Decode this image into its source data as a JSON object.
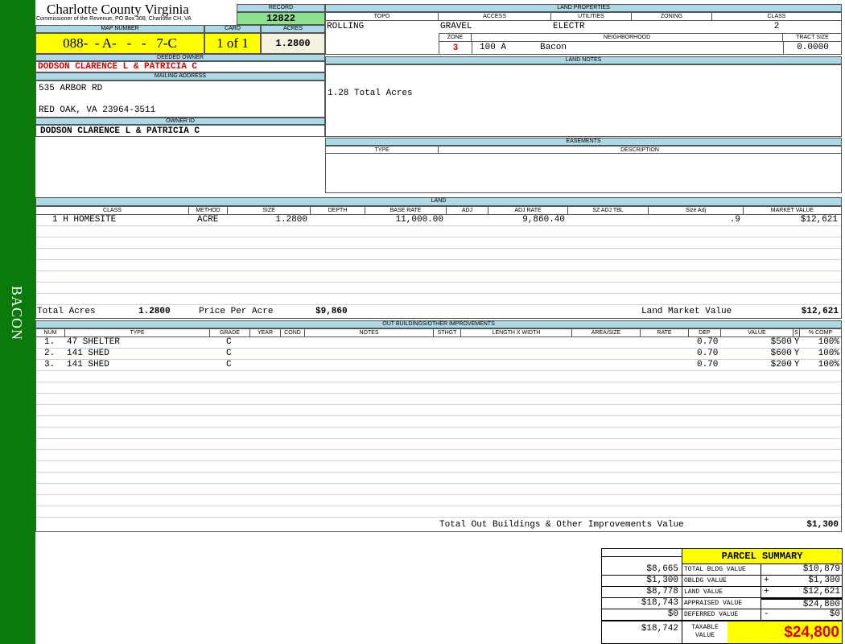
{
  "sidebar": {
    "label": "BACON",
    "color": "#0a7a0a"
  },
  "header": {
    "title": "Charlotte County Virginia",
    "subtitle": "Commissioner of the Revenue, PO Box 308, Charlotte CH, VA"
  },
  "record": {
    "label": "RECORD",
    "value": "12822"
  },
  "map": {
    "map_label": "MAP NUMBER",
    "map_value": "088-  - A-   -   -   7-C",
    "card_label": "CARD",
    "card_value": "1 of 1",
    "acres_label": "ACRES",
    "acres_value": "1.2800"
  },
  "owner": {
    "deeded_label": "DEEDED OWNER",
    "deeded_value": "DODSON CLARENCE L & PATRICIA C",
    "mailing_label": "MAILING ADDRESS",
    "address1": "535 ARBOR RD",
    "address2": "RED OAK, VA 23964-3511",
    "owner_id_label": "OWNER ID",
    "owner_id_value": "DODSON CLARENCE L & PATRICIA C"
  },
  "land_properties": {
    "label": "LAND PROPERTIES",
    "topo_label": "TOPO",
    "access_label": "ACCESS",
    "utilities_label": "UTILITIES",
    "zoning_label": "ZONING",
    "class_label": "CLASS",
    "topo": "ROLLING",
    "access": "GRAVEL",
    "utilities": "ELECTR",
    "zoning": "",
    "class": "2",
    "zone_label": "ZONE",
    "neighborhood_label": "NEIGHBORHOOD",
    "tract_label": "TRACT SIZE",
    "zone": "3",
    "neighborhood_code": "100 A",
    "neighborhood": "Bacon",
    "tract": "0.0000"
  },
  "land_notes": {
    "label": "LAND NOTES",
    "text": "1.28 Total Acres"
  },
  "easements": {
    "label": "EASEMENTS",
    "type_label": "TYPE",
    "desc_label": "DESCRIPTION"
  },
  "land": {
    "label": "LAND",
    "columns": [
      "CLASS",
      "METHOD",
      "SIZE",
      "DEPTH",
      "BASE RATE",
      "ADJ",
      "ADJ RATE",
      "SZ ADJ TBL",
      "Size Adj",
      "MARKET VALUE"
    ],
    "rows": [
      [
        "1 H HOMESITE",
        "ACRE",
        "1.2800",
        "",
        "11,000.00",
        "",
        "9,860.40",
        "",
        ".9",
        "$12,621"
      ]
    ],
    "total_acres_label": "Total Acres",
    "total_acres": "1.2800",
    "price_label": "Price Per Acre",
    "price": "$9,860",
    "market_label": "Land Market Value",
    "market": "$12,621"
  },
  "outbuildings": {
    "label": "OUT BUILDINGS/OTHER IMPROVEMENTS",
    "columns": [
      "NUM",
      "TYPE",
      "GRADE",
      "YEAR",
      "COND",
      "NOTES",
      "STHGT",
      "LENGTH X WIDTH",
      "AREA/SIZE",
      "RATE",
      "DEP",
      "VALUE",
      "S",
      "% COMP"
    ],
    "rows": [
      [
        "1.",
        "47  SHELTER",
        "C",
        "",
        "",
        "",
        "",
        "",
        "",
        "",
        "0.70",
        "$500",
        "Y",
        "100%"
      ],
      [
        "2.",
        "141 SHED",
        "C",
        "",
        "",
        "",
        "",
        "",
        "",
        "",
        "0.70",
        "$600",
        "Y",
        "100%"
      ],
      [
        "3.",
        "141 SHED",
        "C",
        "",
        "",
        "",
        "",
        "",
        "",
        "",
        "0.70",
        "$200",
        "Y",
        "100%"
      ]
    ],
    "total_label": "Total Out Buildings & Other Improvements Value",
    "total": "$1,300"
  },
  "summary": {
    "title": "PARCEL SUMMARY",
    "rows": [
      {
        "prior": "$8,665",
        "label": "TOTAL BLDG VALUE",
        "op": "",
        "value": "$10,879"
      },
      {
        "prior": "$1,300",
        "label": "OBLDG VALUE",
        "op": "+",
        "value": "$1,300"
      },
      {
        "prior": "$8,778",
        "label": "LAND VALUE",
        "op": "+",
        "value": "$12,621"
      },
      {
        "prior": "$18,743",
        "label": "APPRAISED VALUE",
        "op": "",
        "value": "$24,800"
      },
      {
        "prior": "$0",
        "label": "DEFERRED VALUE",
        "op": "-",
        "value": "$0"
      }
    ],
    "taxable_prior": "$18,742",
    "taxable_label": "TAXABLE VALUE",
    "taxable": "$24,800"
  }
}
